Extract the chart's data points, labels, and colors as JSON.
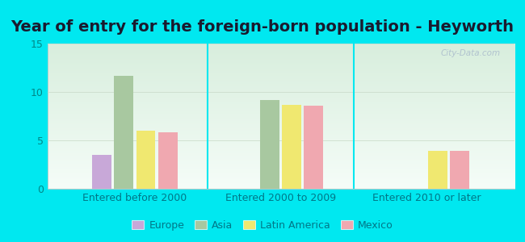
{
  "title": "Year of entry for the foreign-born population - Heyworth",
  "categories": [
    "Entered before 2000",
    "Entered 2000 to 2009",
    "Entered 2010 or later"
  ],
  "series": {
    "Europe": [
      3.5,
      0,
      0
    ],
    "Asia": [
      11.7,
      9.2,
      0
    ],
    "Latin America": [
      6.0,
      8.7,
      3.9
    ],
    "Mexico": [
      5.8,
      8.6,
      3.9
    ]
  },
  "colors": {
    "Europe": "#c8a8d8",
    "Asia": "#a8c8a0",
    "Latin America": "#f0e870",
    "Mexico": "#f0a8b0"
  },
  "ylim": [
    0,
    15
  ],
  "yticks": [
    0,
    5,
    10,
    15
  ],
  "background_color": "#00e8f0",
  "plot_bg_top": "#d8eedd",
  "plot_bg_bottom": "#f5fdf8",
  "watermark": "City-Data.com",
  "title_fontsize": 14,
  "tick_fontsize": 9,
  "legend_fontsize": 9,
  "title_color": "#1a1a2e",
  "tick_color": "#008888",
  "label_color": "#007788"
}
